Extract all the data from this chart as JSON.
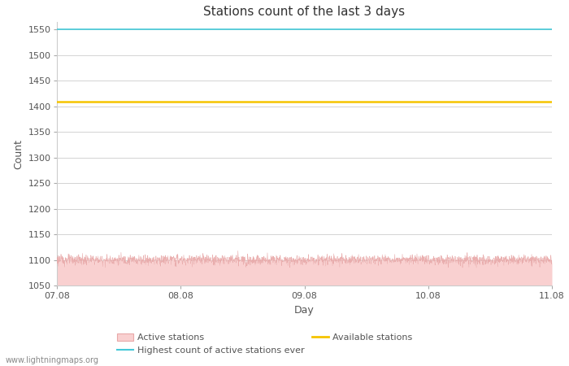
{
  "title": "Stations count of the last 3 days",
  "xlabel": "Day",
  "ylabel": "Count",
  "ylim": [
    1050,
    1565
  ],
  "yticks": [
    1050,
    1100,
    1150,
    1200,
    1250,
    1300,
    1350,
    1400,
    1450,
    1500,
    1550
  ],
  "xlim_start": 0,
  "xlim_end": 4,
  "xtick_positions": [
    0,
    1,
    2,
    3,
    4
  ],
  "xtick_labels": [
    "07.08",
    "08.08",
    "09.08",
    "10.08",
    "11.08"
  ],
  "highest_ever": 1550,
  "available_stations": 1410,
  "active_stations_mean": 1100,
  "active_stations_noise": 5,
  "active_color_fill": "#f9d0d0",
  "active_color_line": "#e8a8a8",
  "highest_color": "#45c8d8",
  "available_color": "#f5c400",
  "background_color": "#ffffff",
  "grid_color": "#cccccc",
  "title_fontsize": 11,
  "axis_label_fontsize": 9,
  "tick_fontsize": 8,
  "watermark": "www.lightningmaps.org",
  "legend_items": [
    "Active stations",
    "Highest count of active stations ever",
    "Available stations"
  ]
}
